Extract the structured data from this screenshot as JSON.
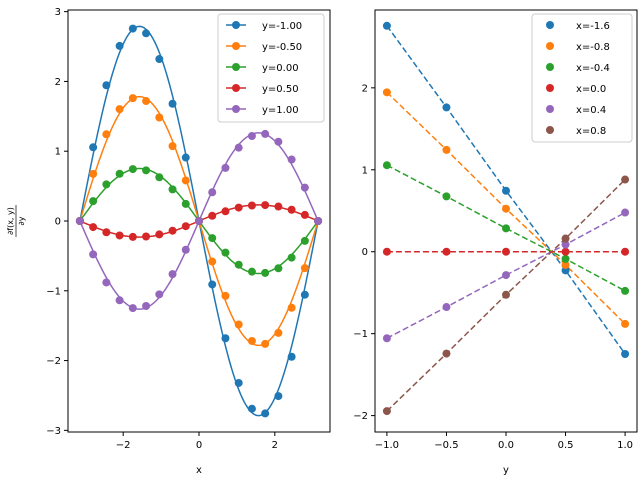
{
  "chart_data": [
    {
      "type": "line",
      "xlabel": "x",
      "ylabel": "∂f(x,y)/∂y",
      "xlim": [
        -3.4558,
        3.4558
      ],
      "ylim": [
        -3.0235,
        3.0235
      ],
      "xticks": [
        -2,
        0,
        2
      ],
      "yticks": [
        -3,
        -2,
        -1,
        0,
        1,
        2,
        3
      ],
      "grid": false,
      "legend_position": "top-right",
      "marker_x": [
        -3.1416,
        -2.7925,
        -2.4435,
        -2.0944,
        -1.7453,
        -1.3963,
        -1.0472,
        -0.6981,
        -0.3491,
        0.0,
        0.3491,
        0.6981,
        1.0472,
        1.3963,
        1.7453,
        2.0944,
        2.4435,
        2.7925,
        3.1416
      ],
      "x_note_markers_are_every_fourth_point": true,
      "series": [
        {
          "name": "y=-1.00",
          "y_param": -1.0,
          "color": "#1f77b4"
        },
        {
          "name": "y=-0.50",
          "y_param": -0.5,
          "color": "#ff7f0e"
        },
        {
          "name": "y=0.00",
          "y_param": 0.0,
          "color": "#2ca02c"
        },
        {
          "name": "y=0.50",
          "y_param": 0.5,
          "color": "#d62728"
        },
        {
          "name": "y=1.00",
          "y_param": 1.0,
          "color": "#9467bd"
        }
      ],
      "marker_values": {
        "y=-1.00": [
          0.0,
          1.056,
          1.945,
          2.509,
          2.757,
          2.69,
          2.321,
          1.68,
          0.909,
          0.0,
          -0.909,
          -1.68,
          -2.321,
          -2.69,
          -2.757,
          -2.509,
          -1.945,
          -1.056,
          0.0
        ],
        "y=-0.50": [
          0.0,
          0.675,
          1.243,
          1.603,
          1.761,
          1.719,
          1.483,
          1.073,
          0.581,
          0.0,
          -0.581,
          -1.073,
          -1.483,
          -1.719,
          -1.761,
          -1.603,
          -1.243,
          -0.675,
          0.0
        ],
        "y=0.00": [
          0.0,
          0.285,
          0.525,
          0.677,
          0.744,
          0.726,
          0.626,
          0.453,
          0.245,
          0.0,
          -0.245,
          -0.453,
          -0.626,
          -0.726,
          -0.744,
          -0.677,
          -0.525,
          -0.285,
          0.0
        ],
        "y=0.50": [
          0.0,
          -0.087,
          -0.161,
          -0.207,
          -0.228,
          -0.222,
          -0.192,
          -0.139,
          -0.075,
          0.0,
          0.075,
          0.139,
          0.192,
          0.222,
          0.228,
          0.207,
          0.161,
          0.087,
          0.0
        ],
        "y=1.00": [
          0.0,
          -0.478,
          -0.881,
          -1.136,
          -1.248,
          -1.218,
          -1.051,
          -0.761,
          -0.412,
          0.0,
          0.412,
          0.761,
          1.051,
          1.218,
          1.248,
          1.136,
          0.881,
          0.478,
          0.0
        ]
      }
    },
    {
      "type": "line",
      "xlabel": "y",
      "ylabel": "",
      "xlim": [
        -1.1,
        1.1
      ],
      "ylim": [
        -2.2,
        2.95
      ],
      "xticks": [
        -1.0,
        -0.5,
        0.0,
        0.5,
        1.0
      ],
      "xtick_labels": [
        "−1.0",
        "−0.5",
        "0.0",
        "0.5",
        "1.0"
      ],
      "yticks": [
        -2,
        -1,
        0,
        1,
        2
      ],
      "grid": false,
      "line_style": "dashed",
      "legend_position": "top-right",
      "x": [
        -1.0,
        -0.5,
        0.0,
        0.5,
        1.0
      ],
      "series": [
        {
          "name": "x=-1.6",
          "color": "#1f77b4",
          "values": [
            2.757,
            1.761,
            0.744,
            -0.228,
            -1.248
          ]
        },
        {
          "name": "x=-0.8",
          "color": "#ff7f0e",
          "values": [
            1.945,
            1.243,
            0.525,
            -0.161,
            -0.881
          ]
        },
        {
          "name": "x=-0.4",
          "color": "#2ca02c",
          "values": [
            1.056,
            0.675,
            0.285,
            -0.087,
            -0.478
          ]
        },
        {
          "name": "x=0.0",
          "color": "#d62728",
          "values": [
            0.0,
            0.0,
            0.0,
            0.0,
            0.0
          ]
        },
        {
          "name": "x=0.4",
          "color": "#9467bd",
          "values": [
            -1.056,
            -0.675,
            -0.285,
            0.087,
            0.478
          ]
        },
        {
          "name": "x=0.8",
          "color": "#8c564b",
          "values": [
            -1.945,
            -1.243,
            -0.525,
            0.161,
            0.881
          ]
        }
      ]
    }
  ],
  "text": {
    "left_xlabel": "x",
    "right_xlabel": "y",
    "left_ylabel_num": "∂f(x, y)",
    "left_ylabel_den": "∂y"
  }
}
